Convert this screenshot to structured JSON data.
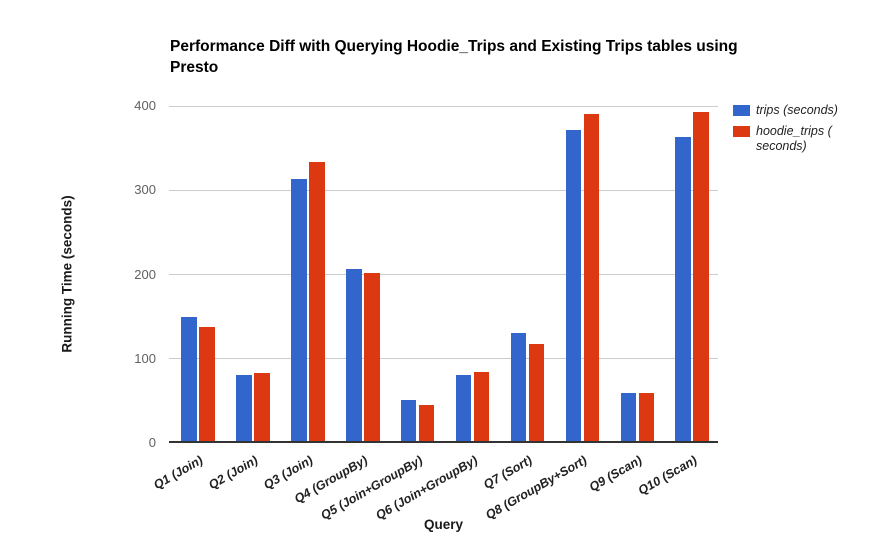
{
  "chart_data": {
    "type": "bar",
    "title": "Performance Diff with Querying Hoodie_Trips and Existing Trips tables using Presto",
    "xlabel": "Query",
    "ylabel": "Running Time (seconds)",
    "categories": [
      "Q1 (Join)",
      "Q2 (Join)",
      "Q3 (Join)",
      "Q4 (GroupBy)",
      "Q5 (Join+GroupBy)",
      "Q6 (Join+GroupBy)",
      "Q7 (Sort)",
      "Q8 (GroupBy+Sort)",
      "Q9 (Scan)",
      "Q10 (Scan)"
    ],
    "series": [
      {
        "name": "trips (seconds)",
        "color": "#3366cc",
        "values": [
          150,
          81,
          313,
          207,
          51,
          81,
          131,
          371,
          60,
          363
        ]
      },
      {
        "name": "hoodie_trips ( seconds)",
        "color": "#dc3912",
        "values": [
          138,
          83,
          333,
          202,
          45,
          84,
          117,
          390,
          59,
          393
        ]
      }
    ],
    "ylim": [
      0,
      400
    ],
    "yticks": [
      0,
      100,
      200,
      300,
      400
    ],
    "grid": "horizontal",
    "legend_position": "right",
    "colors": {
      "gridline": "#cccccc",
      "axis_line": "#333333",
      "tick_text": "#616161",
      "background": "#ffffff"
    }
  }
}
